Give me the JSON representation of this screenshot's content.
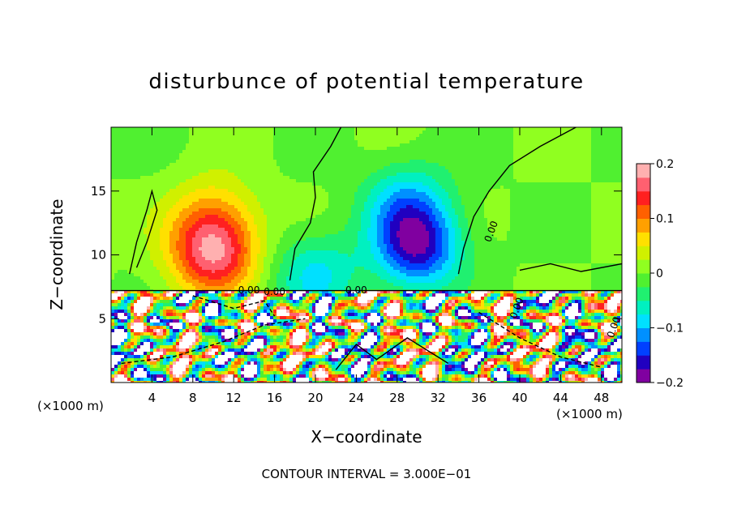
{
  "chart_data": {
    "type": "heatmap",
    "title": "disturbunce of potential temperature",
    "xlabel": "X−coordinate",
    "ylabel": "Z−coordinate",
    "x_unit_label": "(×1000 m)",
    "x_unit_label_right": "(×1000 m)",
    "xlim": [
      0,
      50
    ],
    "ylim": [
      0,
      20
    ],
    "x_ticks": [
      4,
      8,
      12,
      16,
      20,
      24,
      28,
      32,
      36,
      40,
      44,
      48
    ],
    "y_ticks": [
      5,
      10,
      15
    ],
    "colorbar": {
      "range": [
        -0.2,
        0.2
      ],
      "tick_values": [
        0.2,
        0.1,
        0,
        -0.1,
        -0.2
      ],
      "tick_labels": [
        "0.2",
        "0.1",
        "0",
        "−0.1",
        "−0.2"
      ],
      "colors": [
        "#8000a0",
        "#2000c0",
        "#0040ff",
        "#0090ff",
        "#00e0ff",
        "#00f0c0",
        "#20f070",
        "#50f030",
        "#90ff20",
        "#d0f000",
        "#ffe000",
        "#ffa000",
        "#ff6000",
        "#ff2020",
        "#ff6070",
        "#ffb0b0"
      ]
    },
    "contour_interval": "CONTOUR INTERVAL = 3.000E−01",
    "contour_labels": [
      "0.00",
      "0.00",
      "0.00",
      "0.00",
      "0.00",
      "0.00"
    ],
    "features": [
      {
        "kind": "warm",
        "x": 10,
        "z": 10,
        "amp": 0.16
      },
      {
        "kind": "warm",
        "x": 10,
        "z": 13,
        "amp": 0.07
      },
      {
        "kind": "cool",
        "x": 30,
        "z": 10.5,
        "amp": -0.16
      },
      {
        "kind": "cool",
        "x": 29,
        "z": 14,
        "amp": -0.09
      },
      {
        "kind": "cool",
        "x": 20,
        "z": 8.5,
        "amp": -0.08
      }
    ],
    "interface_z": 7.2
  }
}
